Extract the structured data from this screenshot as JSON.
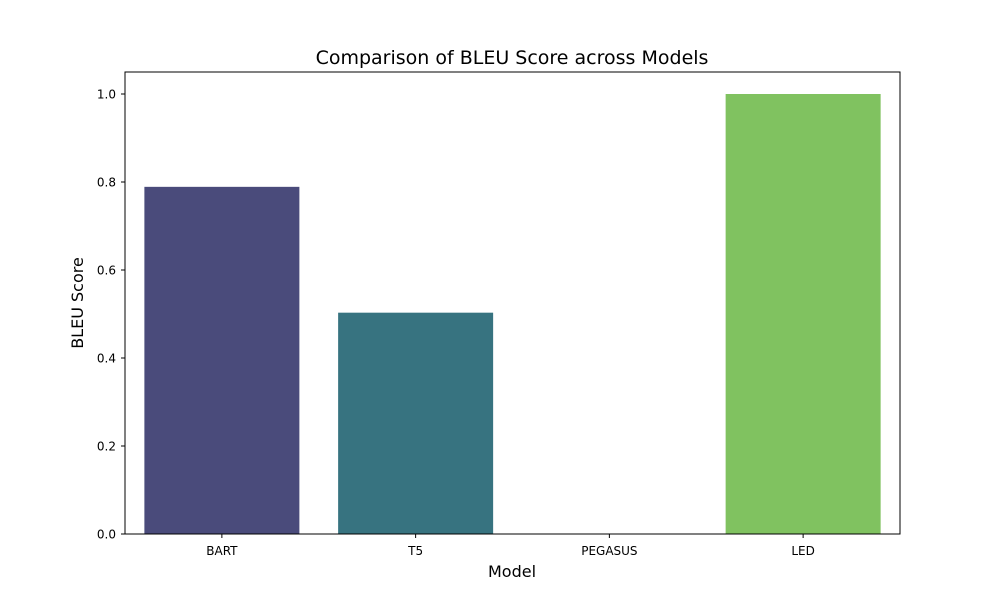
{
  "chart_data": {
    "type": "bar",
    "title": "Comparison of BLEU Score across Models",
    "xlabel": "Model",
    "ylabel": "BLEU Score",
    "categories": [
      "BART",
      "T5",
      "PEGASUS",
      "LED"
    ],
    "values": [
      0.789,
      0.503,
      0.0,
      1.0
    ],
    "colors": [
      "#4a4b7b",
      "#377380",
      "#2a9d8a",
      "#80c260"
    ],
    "ylim": [
      0,
      1.05
    ],
    "yticks": [
      0.0,
      0.2,
      0.4,
      0.6,
      0.8,
      1.0
    ],
    "ytick_labels": [
      "0.0",
      "0.2",
      "0.4",
      "0.6",
      "0.8",
      "1.0"
    ],
    "grid": false,
    "legend": "none"
  }
}
